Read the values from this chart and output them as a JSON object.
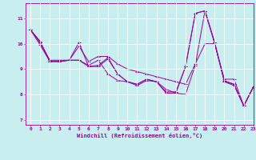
{
  "xlabel": "Windchill (Refroidissement éolien,°C)",
  "bg_color": "#c8eef0",
  "line_color": "#990099",
  "grid_color": "#ffffff",
  "xlim": [
    -0.5,
    23
  ],
  "ylim": [
    6.8,
    11.6
  ],
  "yticks": [
    7,
    8,
    9,
    10,
    11
  ],
  "xticks": [
    0,
    1,
    2,
    3,
    4,
    5,
    6,
    7,
    8,
    9,
    10,
    11,
    12,
    13,
    14,
    15,
    16,
    17,
    18,
    19,
    20,
    21,
    22,
    23
  ],
  "series": [
    [
      10.55,
      10.1,
      9.3,
      9.3,
      9.35,
      10.05,
      9.1,
      9.15,
      9.45,
      8.8,
      8.5,
      8.35,
      8.55,
      8.5,
      8.05,
      8.05,
      9.1,
      11.2,
      11.3,
      10.05,
      8.5,
      8.35,
      7.55,
      8.3
    ],
    [
      10.55,
      10.05,
      9.35,
      9.35,
      9.35,
      9.35,
      9.15,
      9.35,
      8.8,
      8.55,
      8.5,
      8.4,
      8.6,
      8.5,
      8.2,
      8.05,
      8.0,
      9.15,
      11.3,
      10.0,
      8.55,
      8.4,
      7.55,
      8.3
    ],
    [
      10.55,
      9.95,
      9.3,
      9.3,
      9.35,
      9.9,
      9.3,
      9.5,
      9.5,
      9.2,
      9.0,
      8.9,
      8.8,
      8.7,
      8.6,
      8.5,
      8.4,
      9.2,
      10.0,
      10.0,
      8.6,
      8.6,
      7.55,
      8.3
    ],
    [
      10.55,
      10.05,
      9.3,
      9.3,
      9.35,
      9.35,
      9.1,
      9.1,
      9.4,
      8.8,
      8.5,
      8.4,
      8.6,
      8.5,
      8.1,
      8.1,
      9.1,
      11.2,
      11.3,
      10.05,
      8.5,
      8.4,
      7.55,
      8.3
    ]
  ]
}
